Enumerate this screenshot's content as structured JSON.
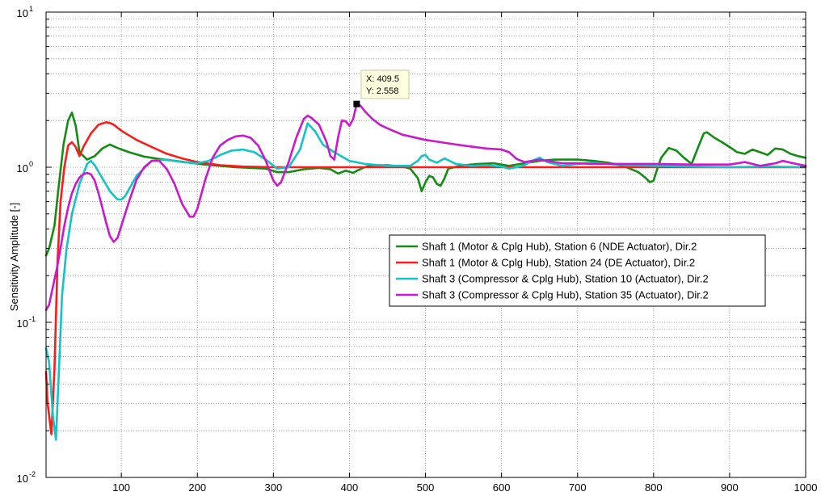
{
  "chart_data": {
    "type": "line",
    "title": "",
    "xlabel": "",
    "ylabel": "Sensitivity Amplitude [-]",
    "xlim": [
      1,
      1000
    ],
    "ylim": [
      0.01,
      10
    ],
    "yscale": "log",
    "grid": true,
    "legend_position": "right",
    "x_ticks": [
      100,
      200,
      300,
      400,
      500,
      600,
      700,
      800,
      900,
      1000
    ],
    "y_ticks": [
      {
        "value": 0.01,
        "base": "10",
        "exp": "-2"
      },
      {
        "value": 0.1,
        "base": "10",
        "exp": "-1"
      },
      {
        "value": 1,
        "base": "10",
        "exp": "0"
      },
      {
        "value": 10,
        "base": "10",
        "exp": "1"
      }
    ],
    "series": [
      {
        "name": "Shaft 1 (Motor & Cplg Hub), Station 6 (NDE Actuator), Dir.2",
        "color": "#148c14",
        "x": [
          1,
          5,
          12,
          18,
          24,
          30,
          35,
          40,
          45,
          55,
          65,
          75,
          85,
          95,
          110,
          130,
          150,
          170,
          190,
          210,
          230,
          250,
          270,
          290,
          305,
          320,
          340,
          360,
          375,
          385,
          395,
          405,
          410,
          420,
          430,
          450,
          470,
          480,
          490,
          495,
          500,
          505,
          510,
          515,
          520,
          525,
          530,
          550,
          570,
          590,
          610,
          630,
          650,
          670,
          690,
          700,
          720,
          740,
          760,
          780,
          790,
          795,
          800,
          805,
          810,
          820,
          830,
          840,
          850,
          860,
          866,
          870,
          880,
          890,
          900,
          910,
          920,
          930,
          940,
          950,
          960,
          970,
          980,
          990,
          1000
        ],
        "values": [
          0.27,
          0.3,
          0.42,
          0.78,
          1.4,
          2.0,
          2.25,
          1.85,
          1.25,
          1.12,
          1.18,
          1.32,
          1.4,
          1.33,
          1.25,
          1.17,
          1.13,
          1.1,
          1.07,
          1.04,
          1.02,
          1.0,
          0.99,
          0.98,
          0.93,
          0.93,
          0.97,
          0.99,
          0.97,
          0.91,
          0.95,
          0.92,
          0.95,
          1.0,
          1.03,
          1.03,
          1.01,
          0.98,
          0.85,
          0.7,
          0.8,
          0.88,
          0.86,
          0.78,
          0.76,
          0.85,
          0.98,
          1.03,
          1.05,
          1.06,
          1.02,
          1.06,
          1.1,
          1.12,
          1.12,
          1.12,
          1.1,
          1.07,
          1.02,
          0.93,
          0.85,
          0.8,
          0.82,
          0.98,
          1.15,
          1.33,
          1.28,
          1.15,
          1.05,
          1.4,
          1.65,
          1.68,
          1.55,
          1.45,
          1.35,
          1.25,
          1.22,
          1.3,
          1.25,
          1.2,
          1.32,
          1.3,
          1.22,
          1.18,
          1.15
        ]
      },
      {
        "name": "Shaft 1 (Motor & Cplg Hub), Station 24 (DE Actuator), Dir.2",
        "color": "#ff1a1a",
        "x": [
          1,
          3,
          5,
          8,
          12,
          16,
          20,
          25,
          30,
          35,
          40,
          45,
          50,
          60,
          70,
          80,
          85,
          90,
          100,
          120,
          140,
          160,
          180,
          200,
          230,
          260,
          300,
          350,
          400,
          450,
          500,
          550,
          600,
          700,
          800,
          900,
          1000
        ],
        "values": [
          0.048,
          0.03,
          0.025,
          0.019,
          0.05,
          0.24,
          0.6,
          1.0,
          1.38,
          1.45,
          1.35,
          1.18,
          1.35,
          1.65,
          1.88,
          1.95,
          1.93,
          1.88,
          1.72,
          1.5,
          1.35,
          1.22,
          1.14,
          1.08,
          1.03,
          1.01,
          1.0,
          1.0,
          1.0,
          1.0,
          1.0,
          1.0,
          1.0,
          1.0,
          1.0,
          1.0,
          1.0
        ]
      },
      {
        "name": "Shaft 3 (Compressor & Cplg Hub), Station 10 (Actuator), Dir.2",
        "color": "#14c4c4",
        "x": [
          1,
          5,
          10,
          14,
          18,
          22,
          28,
          35,
          45,
          55,
          60,
          65,
          75,
          85,
          95,
          100,
          105,
          110,
          120,
          140,
          160,
          180,
          200,
          215,
          230,
          245,
          260,
          275,
          290,
          305,
          320,
          335,
          345,
          355,
          365,
          380,
          400,
          420,
          450,
          480,
          490,
          495,
          500,
          505,
          515,
          525,
          540,
          560,
          580,
          600,
          610,
          620,
          630,
          640,
          650,
          660,
          680,
          700,
          720,
          740,
          760,
          800,
          850,
          900,
          950,
          1000
        ],
        "values": [
          0.068,
          0.055,
          0.025,
          0.0175,
          0.05,
          0.15,
          0.3,
          0.5,
          0.78,
          1.05,
          1.1,
          1.03,
          0.85,
          0.7,
          0.62,
          0.62,
          0.65,
          0.72,
          0.88,
          1.1,
          1.12,
          1.08,
          1.06,
          1.1,
          1.2,
          1.28,
          1.3,
          1.25,
          1.12,
          0.98,
          1.0,
          1.3,
          1.92,
          1.7,
          1.4,
          1.25,
          1.1,
          1.05,
          1.02,
          1.02,
          1.1,
          1.18,
          1.2,
          1.12,
          1.07,
          1.14,
          1.05,
          1.02,
          1.03,
          1.01,
          0.98,
          1.0,
          1.03,
          1.1,
          1.15,
          1.08,
          1.02,
          1.05,
          1.07,
          1.05,
          1.03,
          1.02,
          1.01,
          1.0,
          1.01,
          1.0
        ]
      },
      {
        "name": "Shaft 3 (Compressor & Cplg Hub), Station 35 (Actuator), Dir.2",
        "color": "#cc18cc",
        "x": [
          1,
          5,
          10,
          15,
          20,
          25,
          30,
          35,
          40,
          45,
          50,
          55,
          60,
          65,
          70,
          75,
          80,
          85,
          90,
          95,
          100,
          110,
          120,
          130,
          140,
          150,
          160,
          170,
          180,
          190,
          195,
          200,
          210,
          220,
          230,
          240,
          250,
          260,
          270,
          280,
          290,
          300,
          305,
          310,
          320,
          330,
          340,
          345,
          350,
          360,
          370,
          375,
          380,
          385,
          390,
          395,
          400,
          405,
          409.5,
          412,
          415,
          420,
          430,
          440,
          450,
          470,
          500,
          520,
          540,
          560,
          580,
          600,
          610,
          620,
          630,
          640,
          650,
          660,
          670,
          680,
          700,
          720,
          740,
          760,
          800,
          850,
          900,
          920,
          930,
          940,
          960,
          970,
          980,
          1000
        ],
        "values": [
          0.12,
          0.13,
          0.17,
          0.22,
          0.3,
          0.42,
          0.55,
          0.68,
          0.78,
          0.86,
          0.9,
          0.92,
          0.9,
          0.82,
          0.68,
          0.55,
          0.44,
          0.36,
          0.33,
          0.35,
          0.42,
          0.6,
          0.83,
          1.0,
          1.1,
          1.1,
          0.97,
          0.78,
          0.58,
          0.48,
          0.48,
          0.54,
          0.82,
          1.15,
          1.38,
          1.5,
          1.58,
          1.6,
          1.55,
          1.38,
          1.1,
          0.82,
          0.76,
          0.8,
          1.08,
          1.55,
          2.05,
          2.15,
          2.08,
          1.88,
          1.45,
          1.18,
          1.12,
          1.55,
          2.0,
          1.98,
          1.85,
          2.05,
          2.558,
          2.55,
          2.48,
          2.3,
          2.05,
          1.88,
          1.78,
          1.62,
          1.5,
          1.45,
          1.4,
          1.36,
          1.32,
          1.3,
          1.25,
          1.13,
          1.08,
          1.1,
          1.12,
          1.1,
          1.08,
          1.06,
          1.06,
          1.05,
          1.05,
          1.05,
          1.05,
          1.04,
          1.04,
          1.08,
          1.05,
          1.02,
          1.06,
          1.1,
          1.07,
          1.02
        ]
      }
    ],
    "datatip": {
      "x_text": "X: 409.5",
      "y_text": "Y: 2.558",
      "x": 409.5,
      "y": 2.558
    }
  }
}
